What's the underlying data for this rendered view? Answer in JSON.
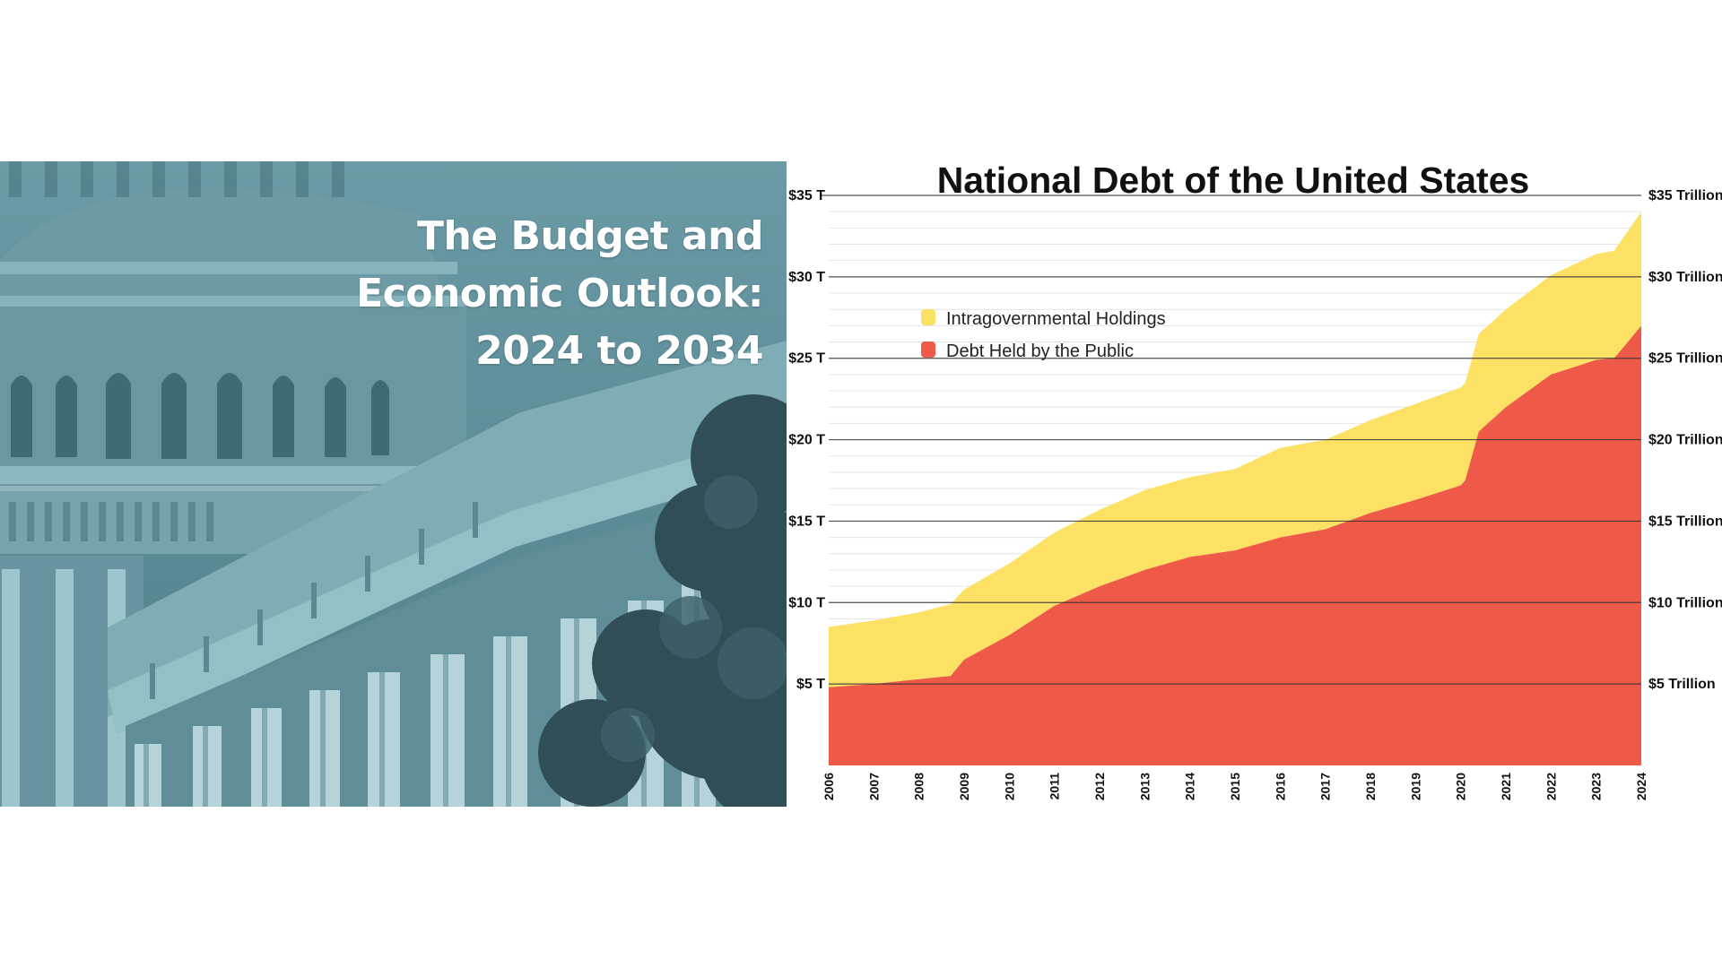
{
  "cover": {
    "title_lines": [
      "The Budget and",
      "Economic Outlook:",
      "2024 to 2034"
    ],
    "tint_color": "#5d8d98"
  },
  "chart_data": {
    "type": "area",
    "title": "National Debt of the United States",
    "stacked": true,
    "x_ticks": [
      "2006",
      "2007",
      "2008",
      "2009",
      "2010",
      "2011",
      "2012",
      "2013",
      "2014",
      "2015",
      "2016",
      "2017",
      "2018",
      "2019",
      "2020",
      "2021",
      "2022",
      "2023",
      "2024"
    ],
    "y_ticks_left": [
      "$5 T",
      "$10 T",
      "$15 T",
      "$20 T",
      "$25 T",
      "$30 T",
      "$35 T"
    ],
    "y_ticks_right": [
      "$5 Trillion",
      "$10 Trillion",
      "$15 Trillion",
      "$20 Trillion",
      "$25 Trillion",
      "$30 Trillion",
      "$35 Trillion"
    ],
    "ylim": [
      0,
      35
    ],
    "xlim": [
      2006,
      2024
    ],
    "legend_position": "upper-left",
    "grid": true,
    "series": [
      {
        "name": "Debt Held by the Public",
        "color": "#ef5a48",
        "x": [
          2006,
          2007,
          2008,
          2008.7,
          2009,
          2010,
          2011,
          2012,
          2013,
          2014,
          2015,
          2016,
          2017,
          2018,
          2019,
          2020,
          2020.1,
          2020.4,
          2021,
          2022,
          2023,
          2023.4,
          2024
        ],
        "values": [
          4.8,
          5.0,
          5.3,
          5.5,
          6.5,
          8.0,
          9.8,
          11.0,
          12.0,
          12.8,
          13.2,
          14.0,
          14.5,
          15.5,
          16.3,
          17.2,
          17.5,
          20.5,
          22.0,
          24.0,
          24.9,
          25.0,
          27.0
        ]
      },
      {
        "name": "Intragovernmental Holdings",
        "color": "#fde165",
        "x": [
          2006,
          2007,
          2008,
          2008.7,
          2009,
          2010,
          2011,
          2012,
          2013,
          2014,
          2015,
          2016,
          2017,
          2018,
          2019,
          2020,
          2020.1,
          2020.4,
          2021,
          2022,
          2023,
          2023.4,
          2024
        ],
        "values": [
          3.7,
          3.9,
          4.1,
          4.4,
          4.3,
          4.4,
          4.5,
          4.7,
          4.9,
          4.9,
          5.0,
          5.5,
          5.5,
          5.7,
          5.9,
          6.0,
          6.0,
          6.0,
          6.0,
          6.1,
          6.5,
          6.6,
          7.0
        ]
      }
    ]
  }
}
